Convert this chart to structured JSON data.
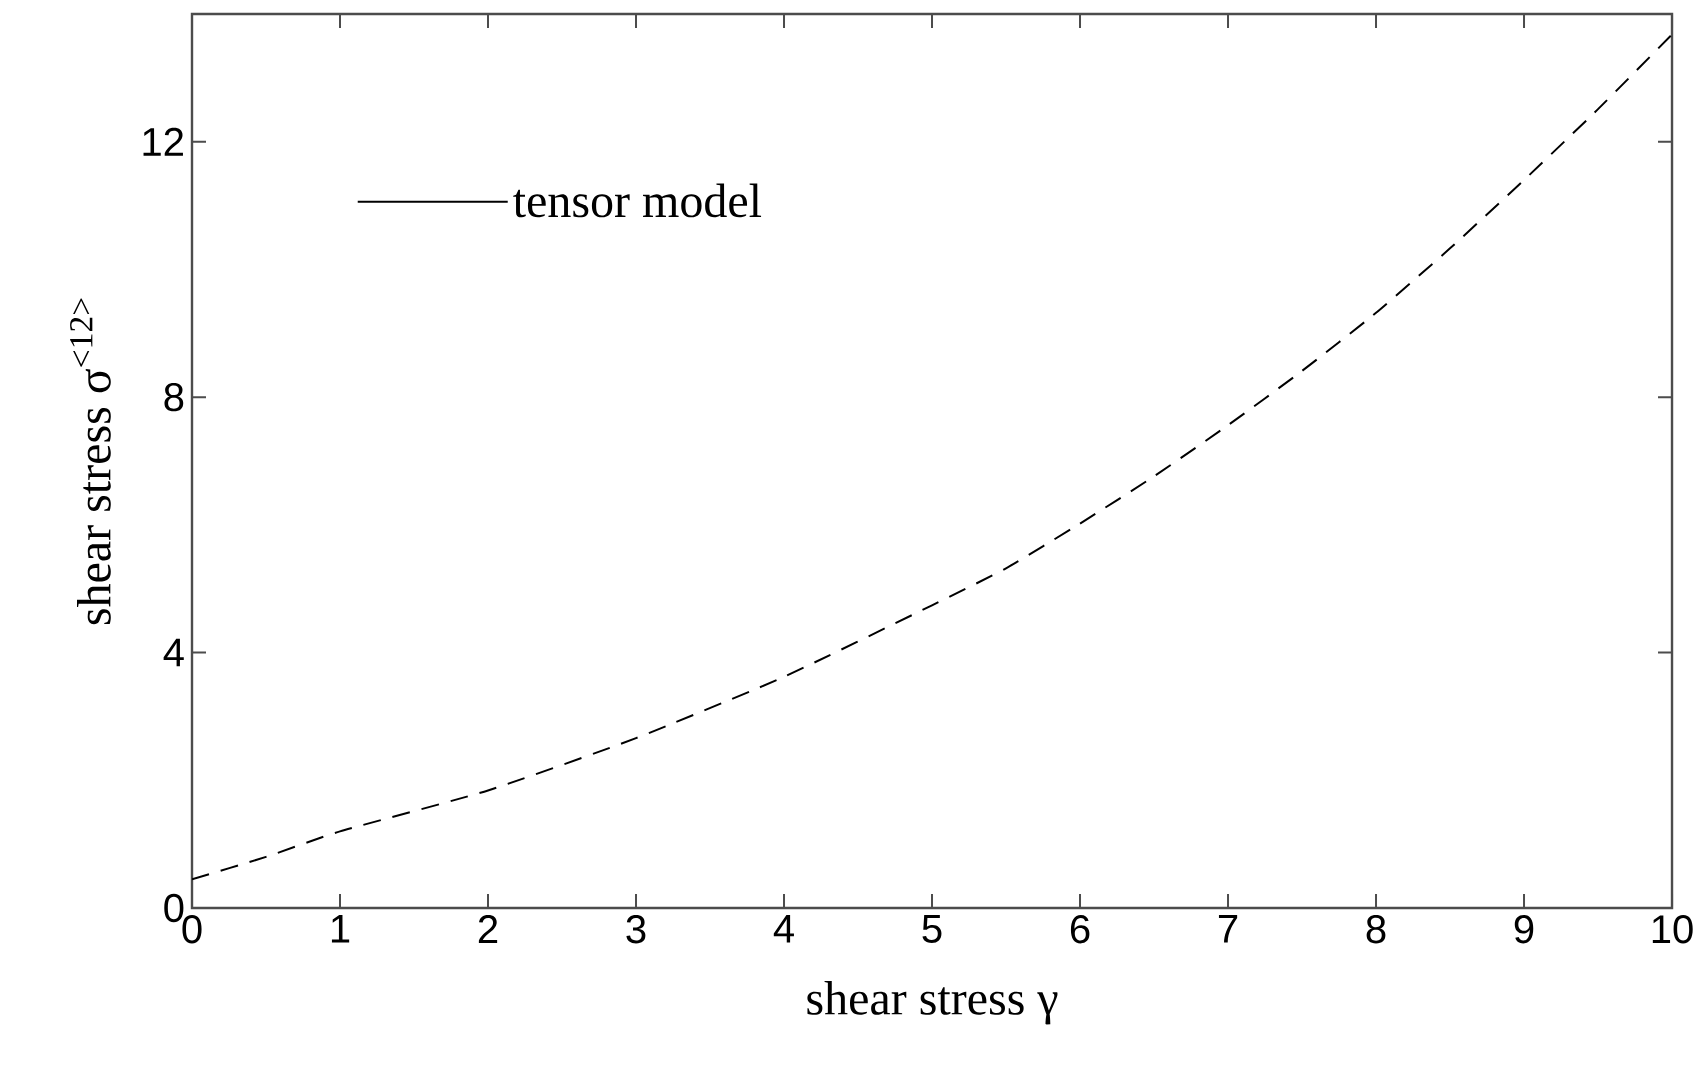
{
  "chart_data": {
    "type": "line",
    "xlabel": "shear stress   γ",
    "ylabel": "shear stress   σ$^{<12>}$",
    "x": [
      0,
      0.5,
      1,
      2,
      3,
      4,
      5,
      5.5,
      6,
      6.5,
      7,
      7.5,
      8,
      8.5,
      9,
      9.5,
      10
    ],
    "series": [
      {
        "name": "tensor model",
        "color": "#000000",
        "values": [
          0.45,
          0.8,
          1.2,
          1.84,
          2.66,
          3.62,
          4.74,
          5.32,
          6.02,
          6.76,
          7.56,
          8.41,
          9.32,
          10.33,
          11.4,
          12.51,
          13.68
        ]
      }
    ],
    "xlim": [
      0,
      10
    ],
    "ylim": [
      0,
      14
    ],
    "xticks": [
      0,
      1,
      2,
      3,
      4,
      5,
      6,
      7,
      8,
      9,
      10
    ],
    "yticks": [
      0,
      4,
      8,
      12
    ],
    "grid": false,
    "legend": "top left",
    "line_style": "dashed",
    "marker": "none"
  }
}
